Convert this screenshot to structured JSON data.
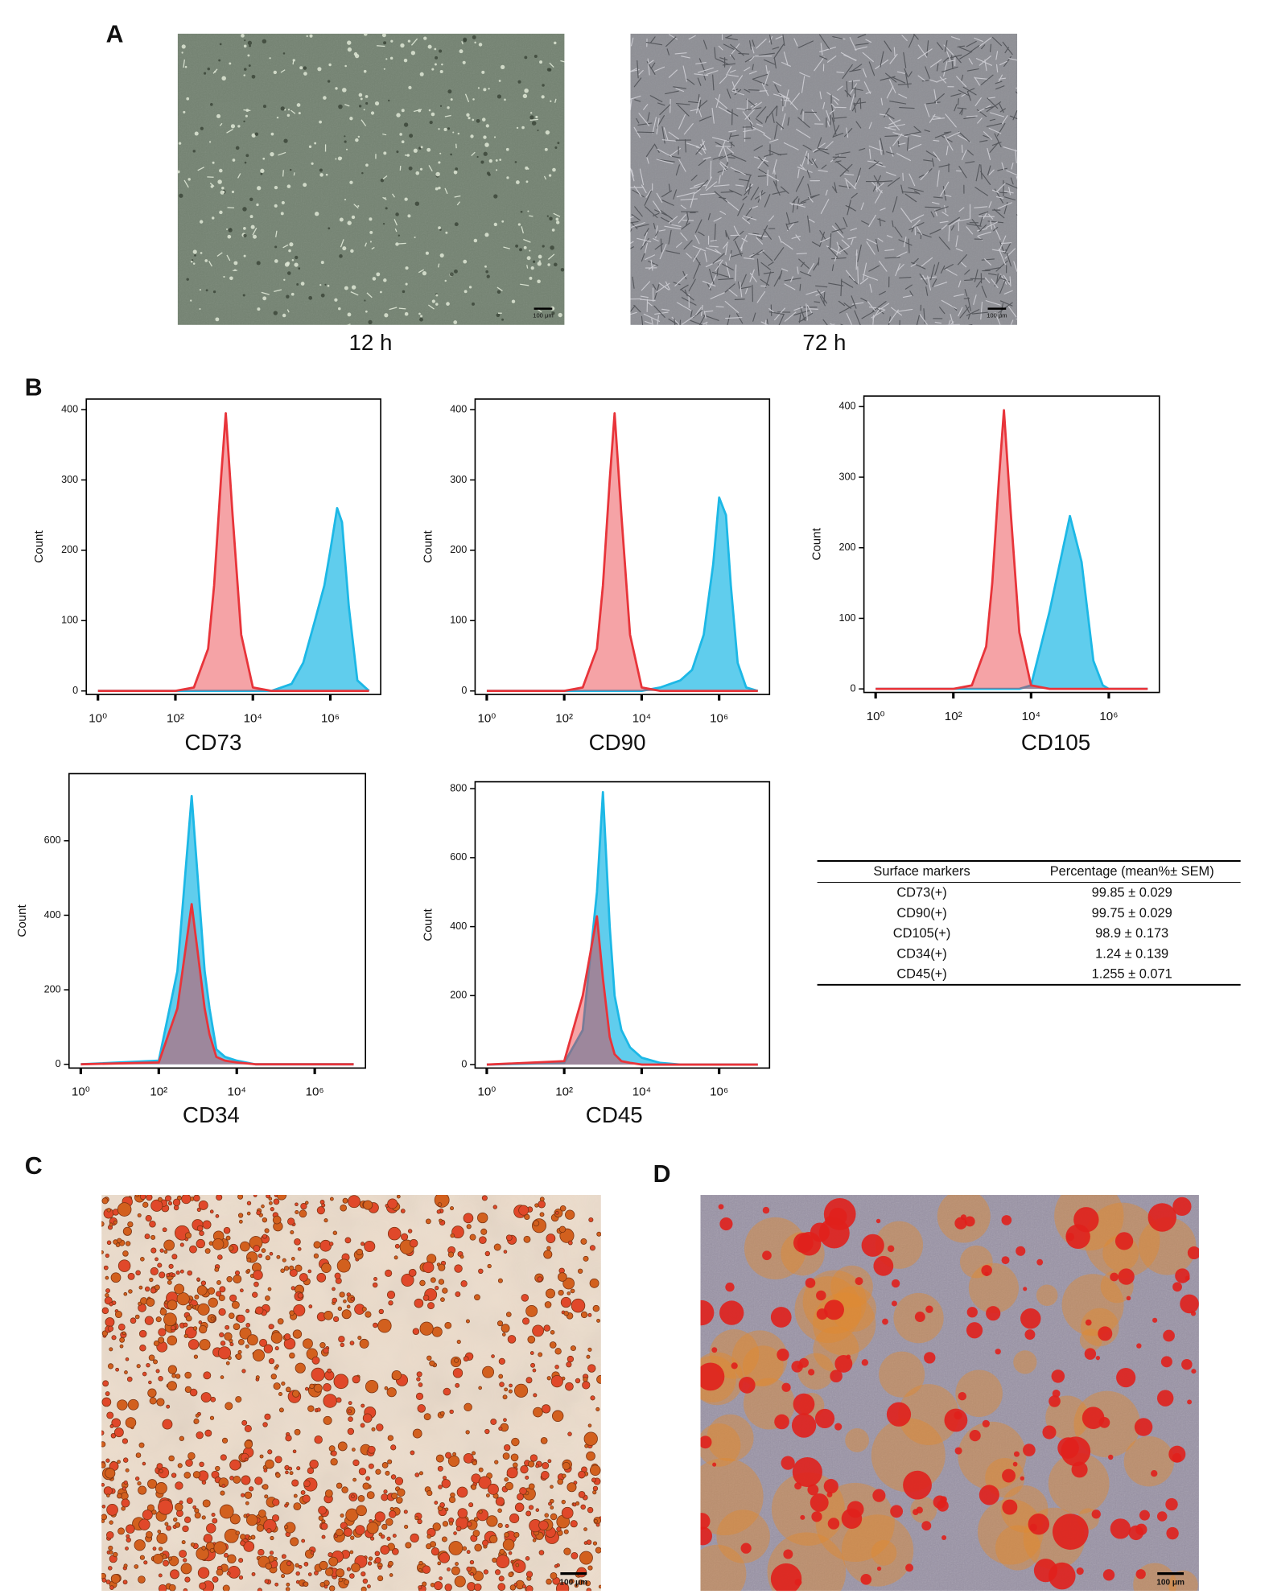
{
  "panel_labels": [
    "A",
    "B",
    "C",
    "D"
  ],
  "images": [
    {
      "caption": "12 h",
      "scale_bar": "100 μm"
    },
    {
      "caption": "72 h",
      "scale_bar": "100 μm"
    },
    {
      "scale_bar": "100 μm"
    },
    {
      "scale_bar": "100 μm"
    }
  ],
  "chart_data": [
    {
      "type": "area",
      "xscale": "log",
      "x_label": "CD73",
      "y_label": "Count",
      "x": [
        1,
        100,
        300,
        700,
        1000,
        1500,
        2000,
        3000,
        5000,
        10000,
        30000,
        100000,
        200000,
        400000,
        700000,
        1000000,
        1500000,
        2000000,
        3000000,
        5000000,
        10000000
      ],
      "series": [
        {
          "color": "#1cb8e6",
          "values": [
            0,
            0,
            0,
            0,
            0,
            0,
            0,
            0,
            0,
            0,
            0,
            10,
            40,
            100,
            150,
            200,
            260,
            240,
            120,
            15,
            0
          ]
        },
        {
          "color": "#e8343a",
          "values": [
            0,
            0,
            5,
            60,
            150,
            300,
            395,
            250,
            80,
            5,
            0,
            0,
            0,
            0,
            0,
            0,
            0,
            0,
            0,
            0,
            0
          ]
        }
      ],
      "xlim": [
        0.5,
        20000000
      ],
      "xticks": [
        {
          "value": 1,
          "label": "10⁰"
        },
        {
          "value": 100,
          "label": "10²"
        },
        {
          "value": 10000,
          "label": "10⁴"
        },
        {
          "value": 1000000,
          "label": "10⁶"
        }
      ],
      "ylim": [
        -5,
        415
      ],
      "yticks": [
        0,
        100,
        200,
        300,
        400
      ]
    },
    {
      "type": "area",
      "xscale": "log",
      "x_label": "CD90",
      "y_label": "Count",
      "x": [
        1,
        100,
        300,
        700,
        1000,
        1500,
        2000,
        3000,
        5000,
        10000,
        30000,
        100000,
        200000,
        400000,
        700000,
        1000000,
        1500000,
        2000000,
        3000000,
        5000000,
        10000000
      ],
      "series": [
        {
          "color": "#1cb8e6",
          "values": [
            0,
            0,
            0,
            0,
            0,
            0,
            0,
            0,
            0,
            0,
            5,
            15,
            30,
            80,
            180,
            275,
            250,
            150,
            40,
            5,
            0
          ]
        },
        {
          "color": "#e8343a",
          "values": [
            0,
            0,
            5,
            60,
            150,
            300,
            395,
            250,
            80,
            5,
            0,
            0,
            0,
            0,
            0,
            0,
            0,
            0,
            0,
            0,
            0
          ]
        }
      ],
      "xlim": [
        0.5,
        20000000
      ],
      "xticks": [
        {
          "value": 1,
          "label": "10⁰"
        },
        {
          "value": 100,
          "label": "10²"
        },
        {
          "value": 10000,
          "label": "10⁴"
        },
        {
          "value": 1000000,
          "label": "10⁶"
        }
      ],
      "ylim": [
        -5,
        415
      ],
      "yticks": [
        0,
        100,
        200,
        300,
        400
      ]
    },
    {
      "type": "area",
      "xscale": "log",
      "x_label": "CD105",
      "y_label": "Count",
      "x": [
        1,
        100,
        300,
        700,
        1000,
        1500,
        2000,
        3000,
        5000,
        10000,
        30000,
        100000,
        200000,
        400000,
        700000,
        1000000,
        1500000,
        2000000,
        3000000,
        5000000,
        10000000
      ],
      "series": [
        {
          "color": "#1cb8e6",
          "values": [
            0,
            0,
            0,
            0,
            0,
            0,
            0,
            0,
            0,
            5,
            110,
            245,
            180,
            40,
            5,
            0,
            0,
            0,
            0,
            0,
            0
          ]
        },
        {
          "color": "#e8343a",
          "values": [
            0,
            0,
            5,
            60,
            150,
            300,
            395,
            250,
            80,
            5,
            0,
            0,
            0,
            0,
            0,
            0,
            0,
            0,
            0,
            0,
            0
          ]
        }
      ],
      "xlim": [
        0.5,
        20000000
      ],
      "xticks": [
        {
          "value": 1,
          "label": "10⁰"
        },
        {
          "value": 100,
          "label": "10²"
        },
        {
          "value": 10000,
          "label": "10⁴"
        },
        {
          "value": 1000000,
          "label": "10⁶"
        }
      ],
      "ylim": [
        -5,
        415
      ],
      "yticks": [
        0,
        100,
        200,
        300,
        400
      ]
    },
    {
      "type": "area",
      "xscale": "log",
      "x_label": "CD34",
      "y_label": "Count",
      "x": [
        1,
        100,
        300,
        700,
        1000,
        1500,
        2000,
        3000,
        5000,
        10000,
        30000,
        100000,
        200000,
        400000,
        700000,
        1000000,
        1500000,
        2000000,
        3000000,
        5000000,
        10000000
      ],
      "series": [
        {
          "color": "#1cb8e6",
          "values": [
            0,
            10,
            250,
            720,
            500,
            250,
            150,
            40,
            20,
            10,
            0,
            0,
            0,
            0,
            0,
            0,
            0,
            0,
            0,
            0,
            0
          ]
        },
        {
          "color": "#e8343a",
          "values": [
            0,
            5,
            150,
            430,
            300,
            150,
            80,
            20,
            10,
            5,
            0,
            0,
            0,
            0,
            0,
            0,
            0,
            0,
            0,
            0,
            0
          ]
        }
      ],
      "xlim": [
        0.5,
        20000000
      ],
      "xticks": [
        {
          "value": 1,
          "label": "10⁰"
        },
        {
          "value": 100,
          "label": "10²"
        },
        {
          "value": 10000,
          "label": "10⁴"
        },
        {
          "value": 1000000,
          "label": "10⁶"
        }
      ],
      "ylim": [
        -10,
        780
      ],
      "yticks": [
        0,
        200,
        400,
        600
      ]
    },
    {
      "type": "area",
      "xscale": "log",
      "x_label": "CD45",
      "y_label": "Count",
      "x": [
        1,
        100,
        300,
        700,
        1000,
        1500,
        2000,
        3000,
        5000,
        10000,
        30000,
        100000,
        200000,
        400000,
        700000,
        1000000,
        1500000,
        2000000,
        3000000,
        5000000,
        10000000
      ],
      "series": [
        {
          "color": "#1cb8e6",
          "values": [
            0,
            5,
            100,
            500,
            790,
            400,
            200,
            100,
            50,
            20,
            5,
            0,
            0,
            0,
            0,
            0,
            0,
            0,
            0,
            0,
            0
          ]
        },
        {
          "color": "#e8343a",
          "values": [
            0,
            10,
            200,
            430,
            250,
            80,
            30,
            10,
            5,
            0,
            0,
            0,
            0,
            0,
            0,
            0,
            0,
            0,
            0,
            0,
            0
          ]
        }
      ],
      "xlim": [
        0.5,
        20000000
      ],
      "xticks": [
        {
          "value": 1,
          "label": "10⁰"
        },
        {
          "value": 100,
          "label": "10²"
        },
        {
          "value": 10000,
          "label": "10⁴"
        },
        {
          "value": 1000000,
          "label": "10⁶"
        }
      ],
      "ylim": [
        -10,
        820
      ],
      "yticks": [
        0,
        200,
        400,
        600,
        800
      ]
    }
  ],
  "table": {
    "header": [
      "Surface markers",
      "Percentage (mean%± SEM)"
    ],
    "rows": [
      [
        "CD73(+)",
        "99.85 ± 0.029"
      ],
      [
        "CD90(+)",
        "99.75 ± 0.029"
      ],
      [
        "CD105(+)",
        "98.9 ± 0.173"
      ],
      [
        "CD34(+)",
        "1.24 ± 0.139"
      ],
      [
        "CD45(+)",
        "1.255 ± 0.071"
      ]
    ]
  }
}
